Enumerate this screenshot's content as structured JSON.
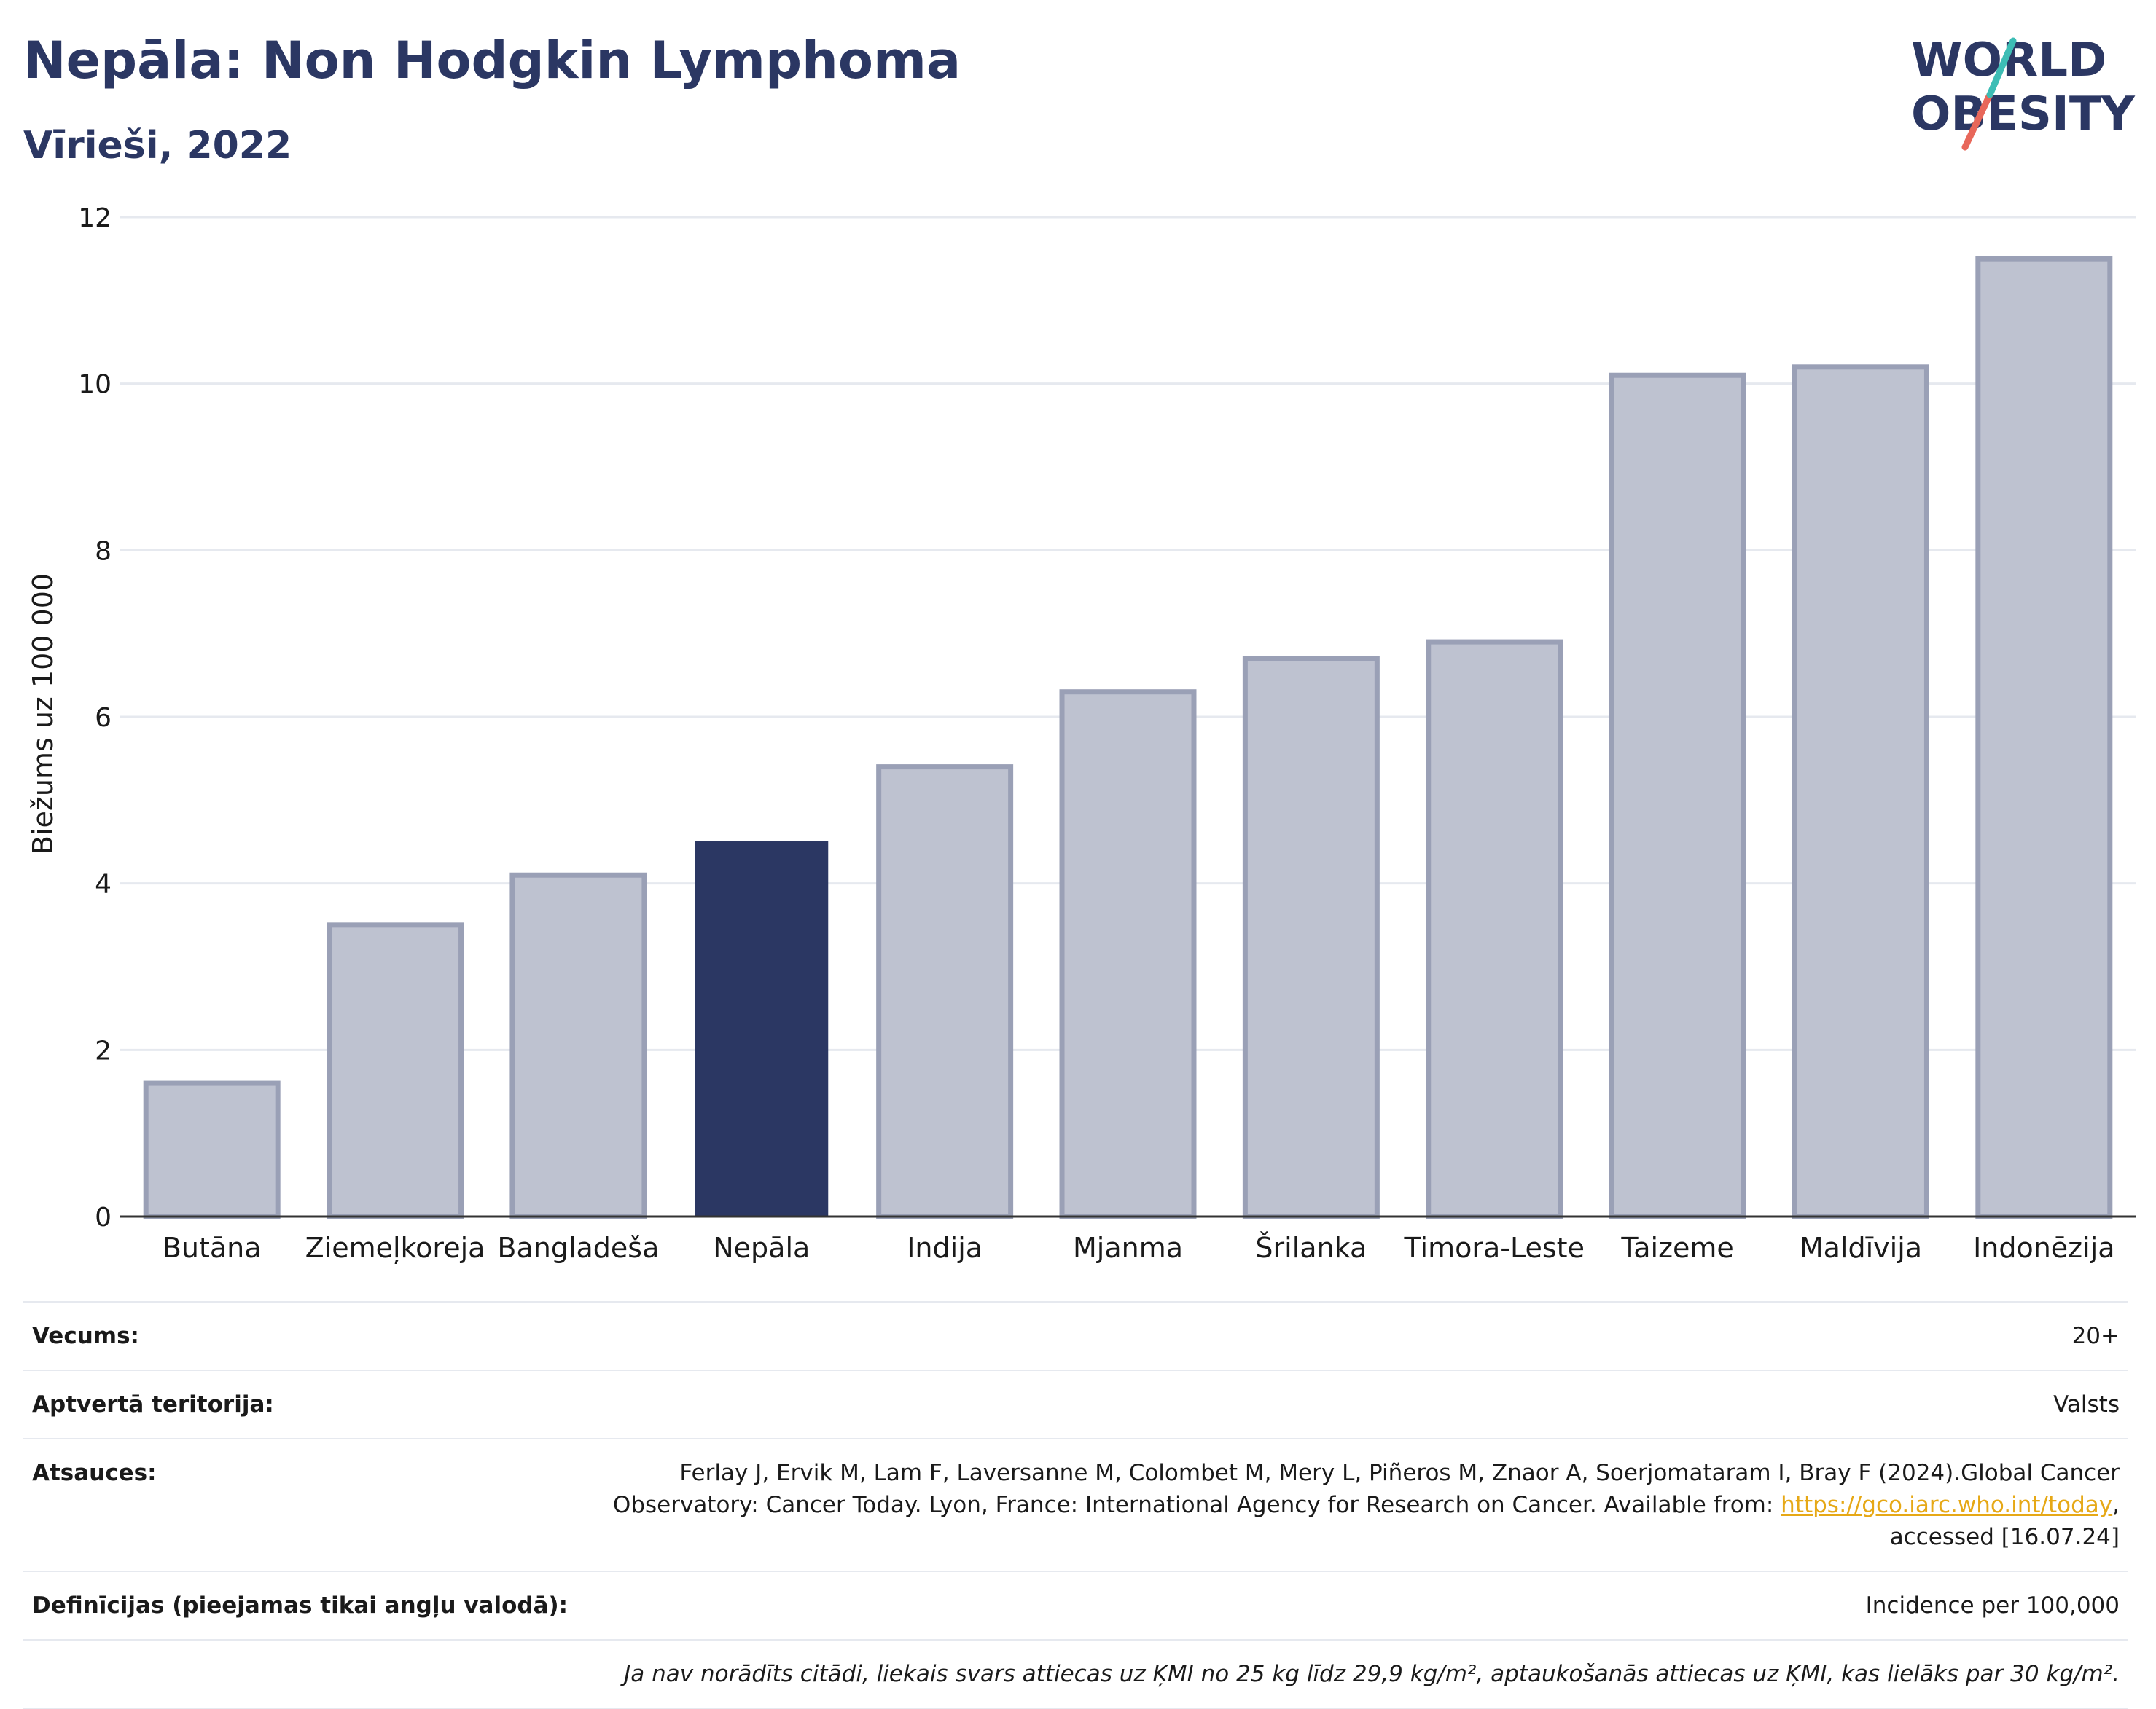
{
  "header": {
    "title": "Nepāla: Non Hodgkin Lymphoma",
    "subtitle": "Vīrieši, 2022",
    "logo_top": "WORLD",
    "logo_bottom": "OBESITY"
  },
  "colors": {
    "highlight": "#2b3763",
    "bar": "#bec2d0",
    "bar_edge": "#9aa0b6",
    "link": "#e6a816",
    "logo_slash_teal": "#3dbdb5",
    "logo_slash_red": "#e8675a"
  },
  "chart_data": {
    "type": "bar",
    "title": "",
    "xlabel": "",
    "ylabel": "Biežums uz 100 000",
    "ylim": [
      0,
      12
    ],
    "yticks": [
      0,
      2,
      4,
      6,
      8,
      10,
      12
    ],
    "grid": true,
    "highlight_category": "Nepāla",
    "categories": [
      "Butāna",
      "Ziemeļkoreja",
      "Bangladeša",
      "Nepāla",
      "Indija",
      "Mjanma",
      "Šrilanka",
      "Timora-Leste",
      "Taizeme",
      "Maldīvija",
      "Indonēzija"
    ],
    "values": [
      1.6,
      3.5,
      4.1,
      4.5,
      5.4,
      6.3,
      6.7,
      6.9,
      10.1,
      10.2,
      11.5
    ]
  },
  "info": {
    "age_label": "Vecums:",
    "age_value": "20+",
    "coverage_label": "Aptvertā teritorija:",
    "coverage_value": "Valsts",
    "references_label": "Atsauces:",
    "references_line1": "Ferlay J, Ervik M, Lam F, Laversanne M, Colombet M, Mery L, Piñeros M, Znaor A, Soerjomataram I, Bray F (2024).Global Cancer",
    "references_line2_pre": "Observatory: Cancer Today. Lyon, France: International Agency for Research on Cancer. Available from: ",
    "references_link": "https://gco.iarc.who.int/today",
    "references_line2_post": ",",
    "references_line3": "accessed [16.07.24]",
    "definitions_label": "Definīcijas (pieejamas tikai angļu valodā):",
    "definitions_value": "Incidence per 100,000",
    "note": "Ja nav norādīts citādi, liekais svars attiecas uz ĶMI no 25 kg līdz 29,9 kg/m², aptaukošanās attiecas uz ĶMI, kas lielāks par 30 kg/m²."
  }
}
